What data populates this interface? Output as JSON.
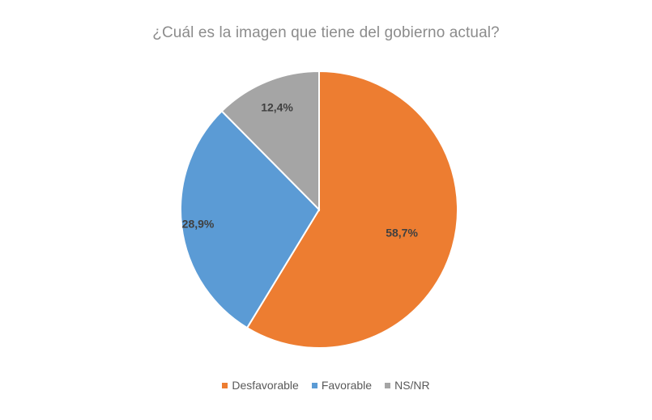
{
  "chart_data": {
    "type": "pie",
    "title": "¿Cuál es la imagen que tiene del gobierno actual?",
    "slices": [
      {
        "name": "Desfavorable",
        "value": 58.7,
        "label": "58,7%",
        "color": "#ED7D31"
      },
      {
        "name": "Favorable",
        "value": 28.9,
        "label": "28,9%",
        "color": "#5B9BD5"
      },
      {
        "name": "NS/NR",
        "value": 12.4,
        "label": "12,4%",
        "color": "#A5A5A5"
      }
    ],
    "start_angle_deg": 0,
    "direction": "clockwise",
    "legend_position": "bottom"
  }
}
